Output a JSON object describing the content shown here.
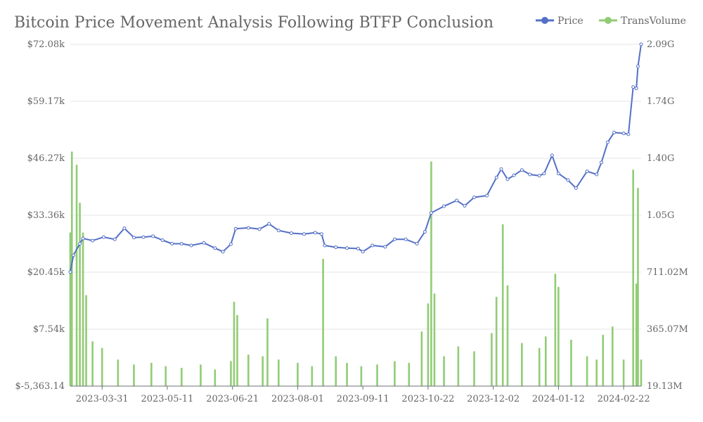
{
  "chart_data": {
    "type": "bar+line",
    "title": "Bitcoin Price Movement Analysis Following BTFP Conclusion",
    "legend": {
      "position": "top-right",
      "entries": [
        {
          "name": "Price",
          "color": "#5470c6"
        },
        {
          "name": "TransVolume",
          "color": "#91cc75"
        }
      ]
    },
    "x_ticks": [
      "2023-03-31",
      "2023-05-11",
      "2023-06-21",
      "2023-08-01",
      "2023-09-11",
      "2023-10-22",
      "2023-12-02",
      "2024-01-12",
      "2024-02-22"
    ],
    "x_start": "2023-03-11",
    "x_end": "2024-03-04",
    "y_left": {
      "ticks": [
        "$-5,363.14",
        "$7.54k",
        "$20.45k",
        "$33.36k",
        "$46.27k",
        "$59.17k",
        "$72.08k"
      ],
      "min": -5363.14,
      "max": 72080
    },
    "y_right": {
      "ticks": [
        "19.13M",
        "365.07M",
        "711.02M",
        "1.05G",
        "1.40G",
        "1.74G",
        "2.09G"
      ],
      "min": 19130000,
      "max": 2090000000
    },
    "grid": true,
    "series": [
      {
        "name": "Price",
        "type": "line",
        "axis": "left",
        "color": "#5470c6",
        "points": [
          [
            "2023-03-11",
            20500
          ],
          [
            "2023-03-13",
            24300
          ],
          [
            "2023-03-17",
            26900
          ],
          [
            "2023-03-19",
            28100
          ],
          [
            "2023-03-25",
            27600
          ],
          [
            "2023-04-01",
            28400
          ],
          [
            "2023-04-08",
            27900
          ],
          [
            "2023-04-14",
            30400
          ],
          [
            "2023-04-20",
            28300
          ],
          [
            "2023-04-26",
            28400
          ],
          [
            "2023-05-02",
            28600
          ],
          [
            "2023-05-08",
            27700
          ],
          [
            "2023-05-14",
            26900
          ],
          [
            "2023-05-20",
            26900
          ],
          [
            "2023-05-26",
            26500
          ],
          [
            "2023-06-03",
            27100
          ],
          [
            "2023-06-10",
            25900
          ],
          [
            "2023-06-15",
            25100
          ],
          [
            "2023-06-20",
            26800
          ],
          [
            "2023-06-23",
            30300
          ],
          [
            "2023-07-01",
            30500
          ],
          [
            "2023-07-08",
            30200
          ],
          [
            "2023-07-14",
            31400
          ],
          [
            "2023-07-20",
            29900
          ],
          [
            "2023-07-28",
            29300
          ],
          [
            "2023-08-05",
            29100
          ],
          [
            "2023-08-12",
            29400
          ],
          [
            "2023-08-16",
            29100
          ],
          [
            "2023-08-18",
            26500
          ],
          [
            "2023-08-25",
            26100
          ],
          [
            "2023-09-01",
            25900
          ],
          [
            "2023-09-08",
            25800
          ],
          [
            "2023-09-11",
            25100
          ],
          [
            "2023-09-17",
            26500
          ],
          [
            "2023-09-25",
            26200
          ],
          [
            "2023-10-01",
            27900
          ],
          [
            "2023-10-08",
            27900
          ],
          [
            "2023-10-15",
            26900
          ],
          [
            "2023-10-20",
            29600
          ],
          [
            "2023-10-24",
            33900
          ],
          [
            "2023-11-01",
            35400
          ],
          [
            "2023-11-09",
            36700
          ],
          [
            "2023-11-14",
            35500
          ],
          [
            "2023-11-20",
            37400
          ],
          [
            "2023-11-28",
            37800
          ],
          [
            "2023-12-04",
            41900
          ],
          [
            "2023-12-07",
            43800
          ],
          [
            "2023-12-11",
            41500
          ],
          [
            "2023-12-15",
            42400
          ],
          [
            "2023-12-20",
            43600
          ],
          [
            "2023-12-25",
            42600
          ],
          [
            "2023-12-31",
            42300
          ],
          [
            "2024-01-03",
            42800
          ],
          [
            "2024-01-08",
            46900
          ],
          [
            "2024-01-12",
            42800
          ],
          [
            "2024-01-18",
            41300
          ],
          [
            "2024-01-23",
            39500
          ],
          [
            "2024-01-30",
            43300
          ],
          [
            "2024-02-05",
            42600
          ],
          [
            "2024-02-08",
            45300
          ],
          [
            "2024-02-12",
            49900
          ],
          [
            "2024-02-16",
            52100
          ],
          [
            "2024-02-22",
            51900
          ],
          [
            "2024-02-25",
            51700
          ],
          [
            "2024-02-28",
            62400
          ],
          [
            "2024-03-01",
            62100
          ],
          [
            "2024-03-02",
            67100
          ],
          [
            "2024-03-04",
            72080
          ]
        ]
      },
      {
        "name": "TransVolume",
        "type": "bar",
        "axis": "right",
        "color": "#91cc75",
        "points": [
          [
            "2023-03-11",
            950000000
          ],
          [
            "2023-03-12",
            1440000000
          ],
          [
            "2023-03-15",
            1360000000
          ],
          [
            "2023-03-17",
            1130000000
          ],
          [
            "2023-03-19",
            950000000
          ],
          [
            "2023-03-21",
            570000000
          ],
          [
            "2023-03-25",
            290000000
          ],
          [
            "2023-03-31",
            250000000
          ],
          [
            "2023-04-10",
            180000000
          ],
          [
            "2023-04-20",
            150000000
          ],
          [
            "2023-05-01",
            160000000
          ],
          [
            "2023-05-10",
            140000000
          ],
          [
            "2023-05-20",
            130000000
          ],
          [
            "2023-06-01",
            150000000
          ],
          [
            "2023-06-10",
            120000000
          ],
          [
            "2023-06-20",
            170000000
          ],
          [
            "2023-06-22",
            530000000
          ],
          [
            "2023-06-24",
            450000000
          ],
          [
            "2023-07-01",
            210000000
          ],
          [
            "2023-07-10",
            200000000
          ],
          [
            "2023-07-13",
            430000000
          ],
          [
            "2023-07-20",
            180000000
          ],
          [
            "2023-08-01",
            160000000
          ],
          [
            "2023-08-10",
            140000000
          ],
          [
            "2023-08-17",
            790000000
          ],
          [
            "2023-08-25",
            200000000
          ],
          [
            "2023-09-01",
            160000000
          ],
          [
            "2023-09-10",
            140000000
          ],
          [
            "2023-09-20",
            150000000
          ],
          [
            "2023-10-01",
            170000000
          ],
          [
            "2023-10-10",
            160000000
          ],
          [
            "2023-10-18",
            350000000
          ],
          [
            "2023-10-22",
            520000000
          ],
          [
            "2023-10-24",
            1380000000
          ],
          [
            "2023-10-26",
            580000000
          ],
          [
            "2023-11-01",
            200000000
          ],
          [
            "2023-11-10",
            260000000
          ],
          [
            "2023-11-20",
            230000000
          ],
          [
            "2023-12-01",
            340000000
          ],
          [
            "2023-12-04",
            560000000
          ],
          [
            "2023-12-08",
            1000000000
          ],
          [
            "2023-12-11",
            630000000
          ],
          [
            "2023-12-20",
            280000000
          ],
          [
            "2023-12-31",
            250000000
          ],
          [
            "2024-01-04",
            320000000
          ],
          [
            "2024-01-10",
            700000000
          ],
          [
            "2024-01-12",
            620000000
          ],
          [
            "2024-01-20",
            300000000
          ],
          [
            "2024-01-30",
            200000000
          ],
          [
            "2024-02-05",
            180000000
          ],
          [
            "2024-02-09",
            330000000
          ],
          [
            "2024-02-15",
            380000000
          ],
          [
            "2024-02-22",
            180000000
          ],
          [
            "2024-02-28",
            1330000000
          ],
          [
            "2024-03-01",
            640000000
          ],
          [
            "2024-03-02",
            1220000000
          ],
          [
            "2024-03-04",
            180000000
          ]
        ]
      }
    ]
  }
}
